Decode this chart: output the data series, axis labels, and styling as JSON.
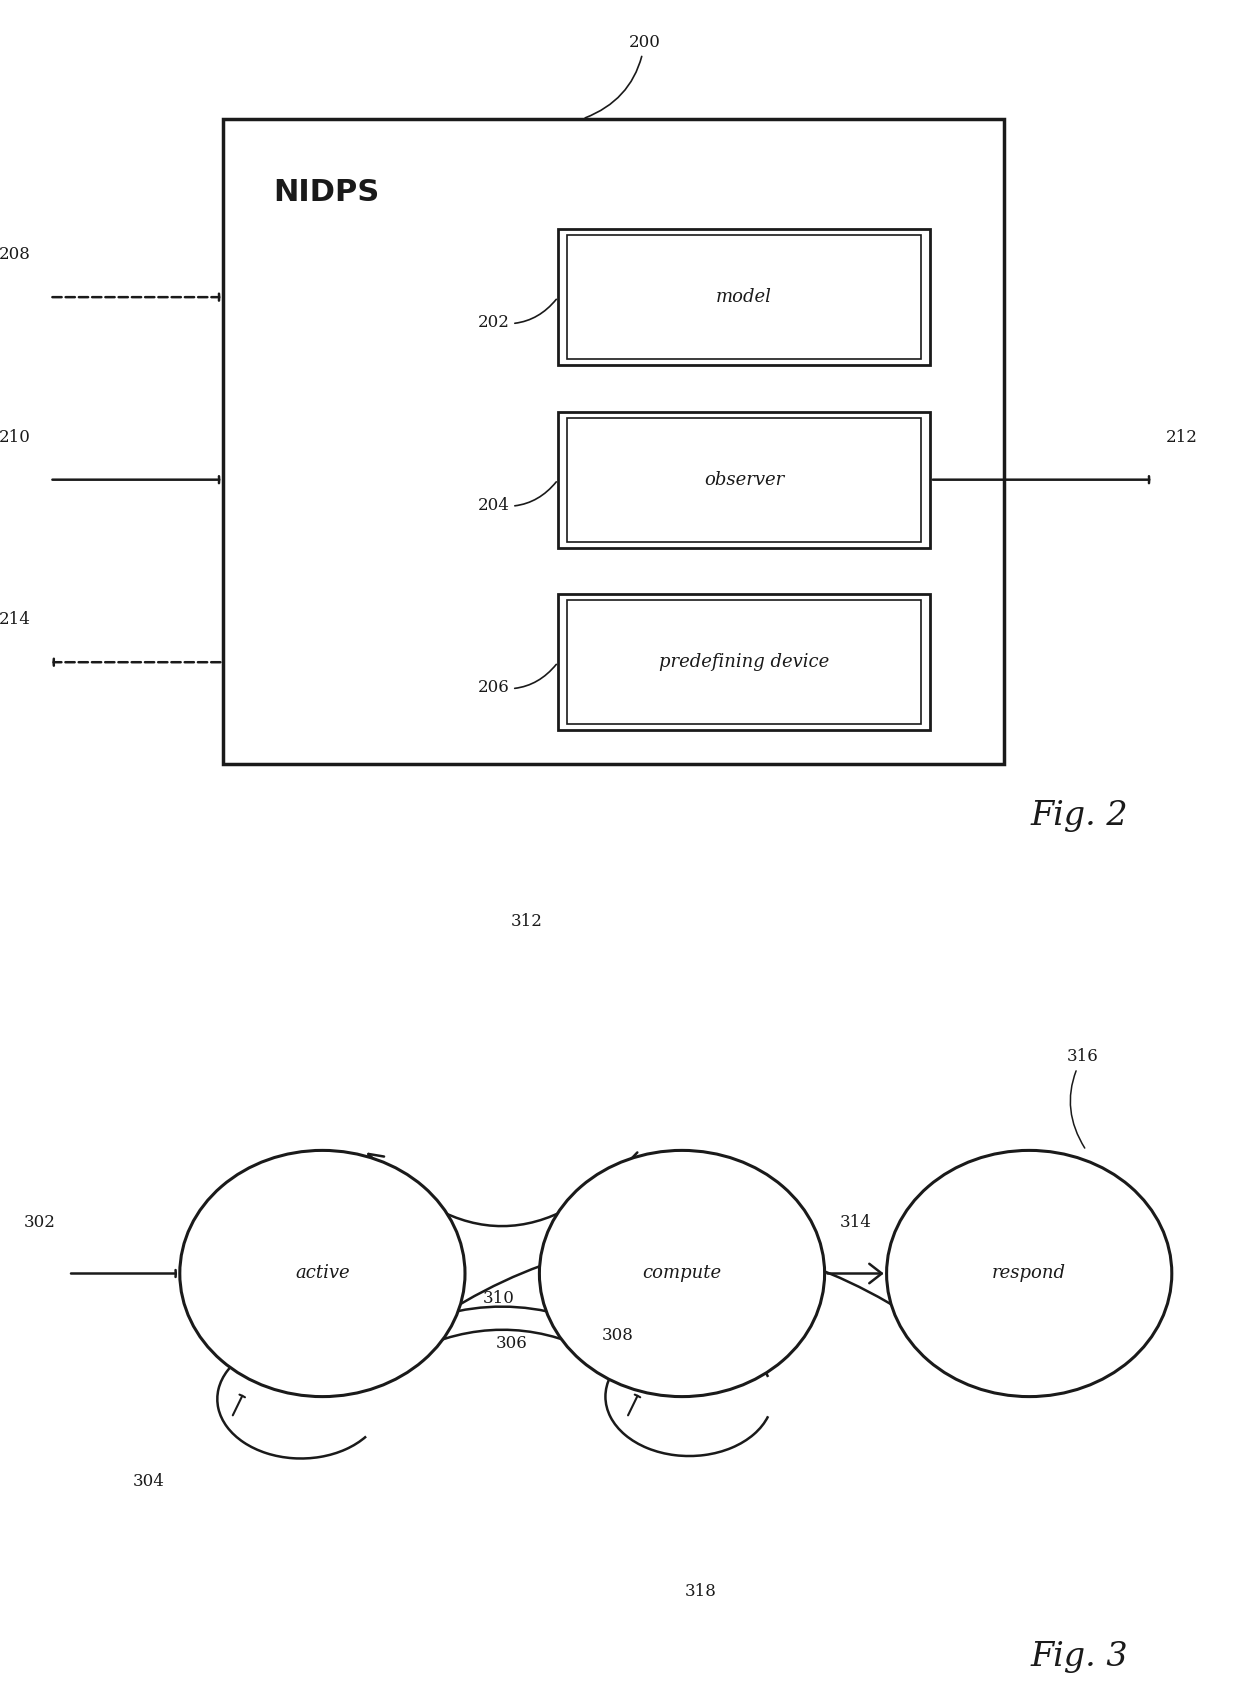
{
  "bg_color": "#ffffff",
  "line_color": "#1a1a1a",
  "font_color": "#1a1a1a",
  "fig2": {
    "nidps_label": "NIDPS",
    "ref_200": "200",
    "ref_202": "202",
    "ref_204": "204",
    "ref_206": "206",
    "ref_208": "208",
    "ref_210": "210",
    "ref_212": "212",
    "ref_214": "214",
    "box_labels": [
      "model",
      "observer",
      "predefining device"
    ],
    "fig_label": "Fig. 2"
  },
  "fig3": {
    "node_active": "active",
    "node_compute": "compute",
    "node_respond": "respond",
    "ref_302": "302",
    "ref_304": "304",
    "ref_306": "306",
    "ref_308": "308",
    "ref_310": "310",
    "ref_312": "312",
    "ref_314": "314",
    "ref_316": "316",
    "ref_318": "318",
    "fig_label": "Fig. 3"
  }
}
